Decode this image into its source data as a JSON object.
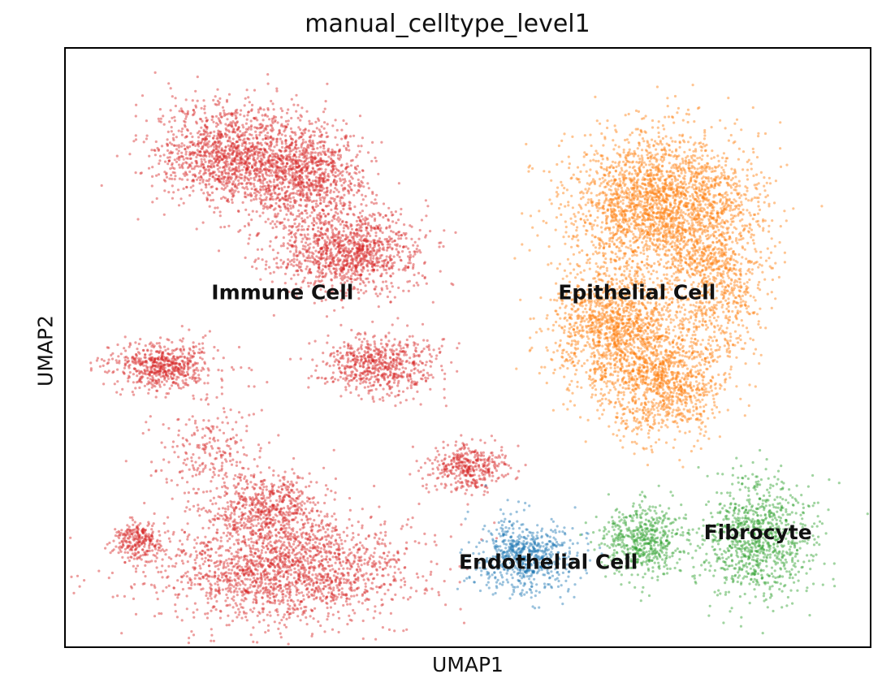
{
  "chart_data": {
    "type": "scatter",
    "title": "manual_celltype_level1",
    "xlabel": "UMAP1",
    "ylabel": "UMAP2",
    "xlim": [
      0,
      100
    ],
    "ylim": [
      0,
      100
    ],
    "grid": false,
    "legend": "on data",
    "series": [
      {
        "name": "Immune Cell",
        "color": "#d62728",
        "label_at": [
          27,
          59
        ],
        "blobs": [
          {
            "x": 21,
            "y": 82,
            "rx": 10,
            "ry": 9,
            "n": 1400
          },
          {
            "x": 30,
            "y": 79,
            "rx": 7,
            "ry": 8,
            "n": 900
          },
          {
            "x": 35,
            "y": 66,
            "rx": 9,
            "ry": 7,
            "n": 1200
          },
          {
            "x": 12,
            "y": 47,
            "rx": 6,
            "ry": 4,
            "n": 600
          },
          {
            "x": 39,
            "y": 47,
            "rx": 7,
            "ry": 5,
            "n": 650
          },
          {
            "x": 50,
            "y": 30,
            "rx": 5,
            "ry": 4,
            "n": 400
          },
          {
            "x": 27,
            "y": 13,
            "rx": 16,
            "ry": 9,
            "n": 1900
          },
          {
            "x": 25,
            "y": 23,
            "rx": 7,
            "ry": 6,
            "n": 600
          },
          {
            "x": 9,
            "y": 18,
            "rx": 3,
            "ry": 3,
            "n": 250
          },
          {
            "x": 18,
            "y": 33,
            "rx": 7,
            "ry": 10,
            "n": 250
          }
        ]
      },
      {
        "name": "Epithelial Cell",
        "color": "#ff7f0e",
        "label_at": [
          71,
          59
        ],
        "blobs": [
          {
            "x": 74,
            "y": 74,
            "rx": 11,
            "ry": 12,
            "n": 2400
          },
          {
            "x": 68,
            "y": 54,
            "rx": 8,
            "ry": 10,
            "n": 1300
          },
          {
            "x": 74,
            "y": 44,
            "rx": 8,
            "ry": 9,
            "n": 1100
          },
          {
            "x": 81,
            "y": 62,
            "rx": 6,
            "ry": 14,
            "n": 800
          }
        ]
      },
      {
        "name": "Endothelial Cell",
        "color": "#1f77b4",
        "label_at": [
          60,
          14
        ],
        "blobs": [
          {
            "x": 57,
            "y": 15,
            "rx": 6,
            "ry": 6,
            "n": 700
          }
        ]
      },
      {
        "name": "Fibrocyte",
        "color": "#2ca02c",
        "label_at": [
          86,
          19
        ],
        "blobs": [
          {
            "x": 72,
            "y": 18,
            "rx": 5,
            "ry": 6,
            "n": 550
          },
          {
            "x": 86,
            "y": 18,
            "rx": 7,
            "ry": 10,
            "n": 900
          }
        ]
      }
    ]
  }
}
